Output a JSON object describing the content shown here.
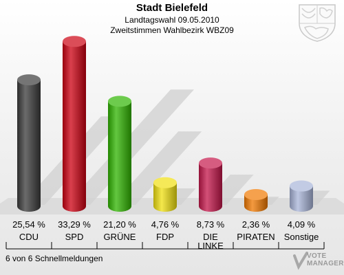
{
  "chart_data": {
    "type": "bar",
    "title": "Stadt Bielefeld",
    "subtitle": "Landtagswahl 09.05.2010",
    "subtitle2": "Zweitstimmen Wahlbezirk WBZ09",
    "categories": [
      "CDU",
      "SPD",
      "GRÜNE",
      "FDP",
      "DIE LINKE",
      "PIRATEN",
      "Sonstige"
    ],
    "values": [
      25.54,
      33.29,
      21.2,
      4.76,
      8.73,
      2.36,
      4.09
    ],
    "value_labels": [
      "25,54 %",
      "33,29 %",
      "21,20 %",
      "4,76 %",
      "8,73 %",
      "2,36 %",
      "4,09 %"
    ],
    "colors": [
      "#3a3a3a",
      "#cc0011",
      "#2fb400",
      "#f0e010",
      "#c4164a",
      "#f07800",
      "#a8b4d8"
    ],
    "unit": "%",
    "ylim": [
      0,
      35
    ]
  },
  "footer": {
    "status": "6 von 6 Schnellmeldungen"
  },
  "logo": {
    "line1": "VOTE",
    "line2": "MANAGER"
  }
}
